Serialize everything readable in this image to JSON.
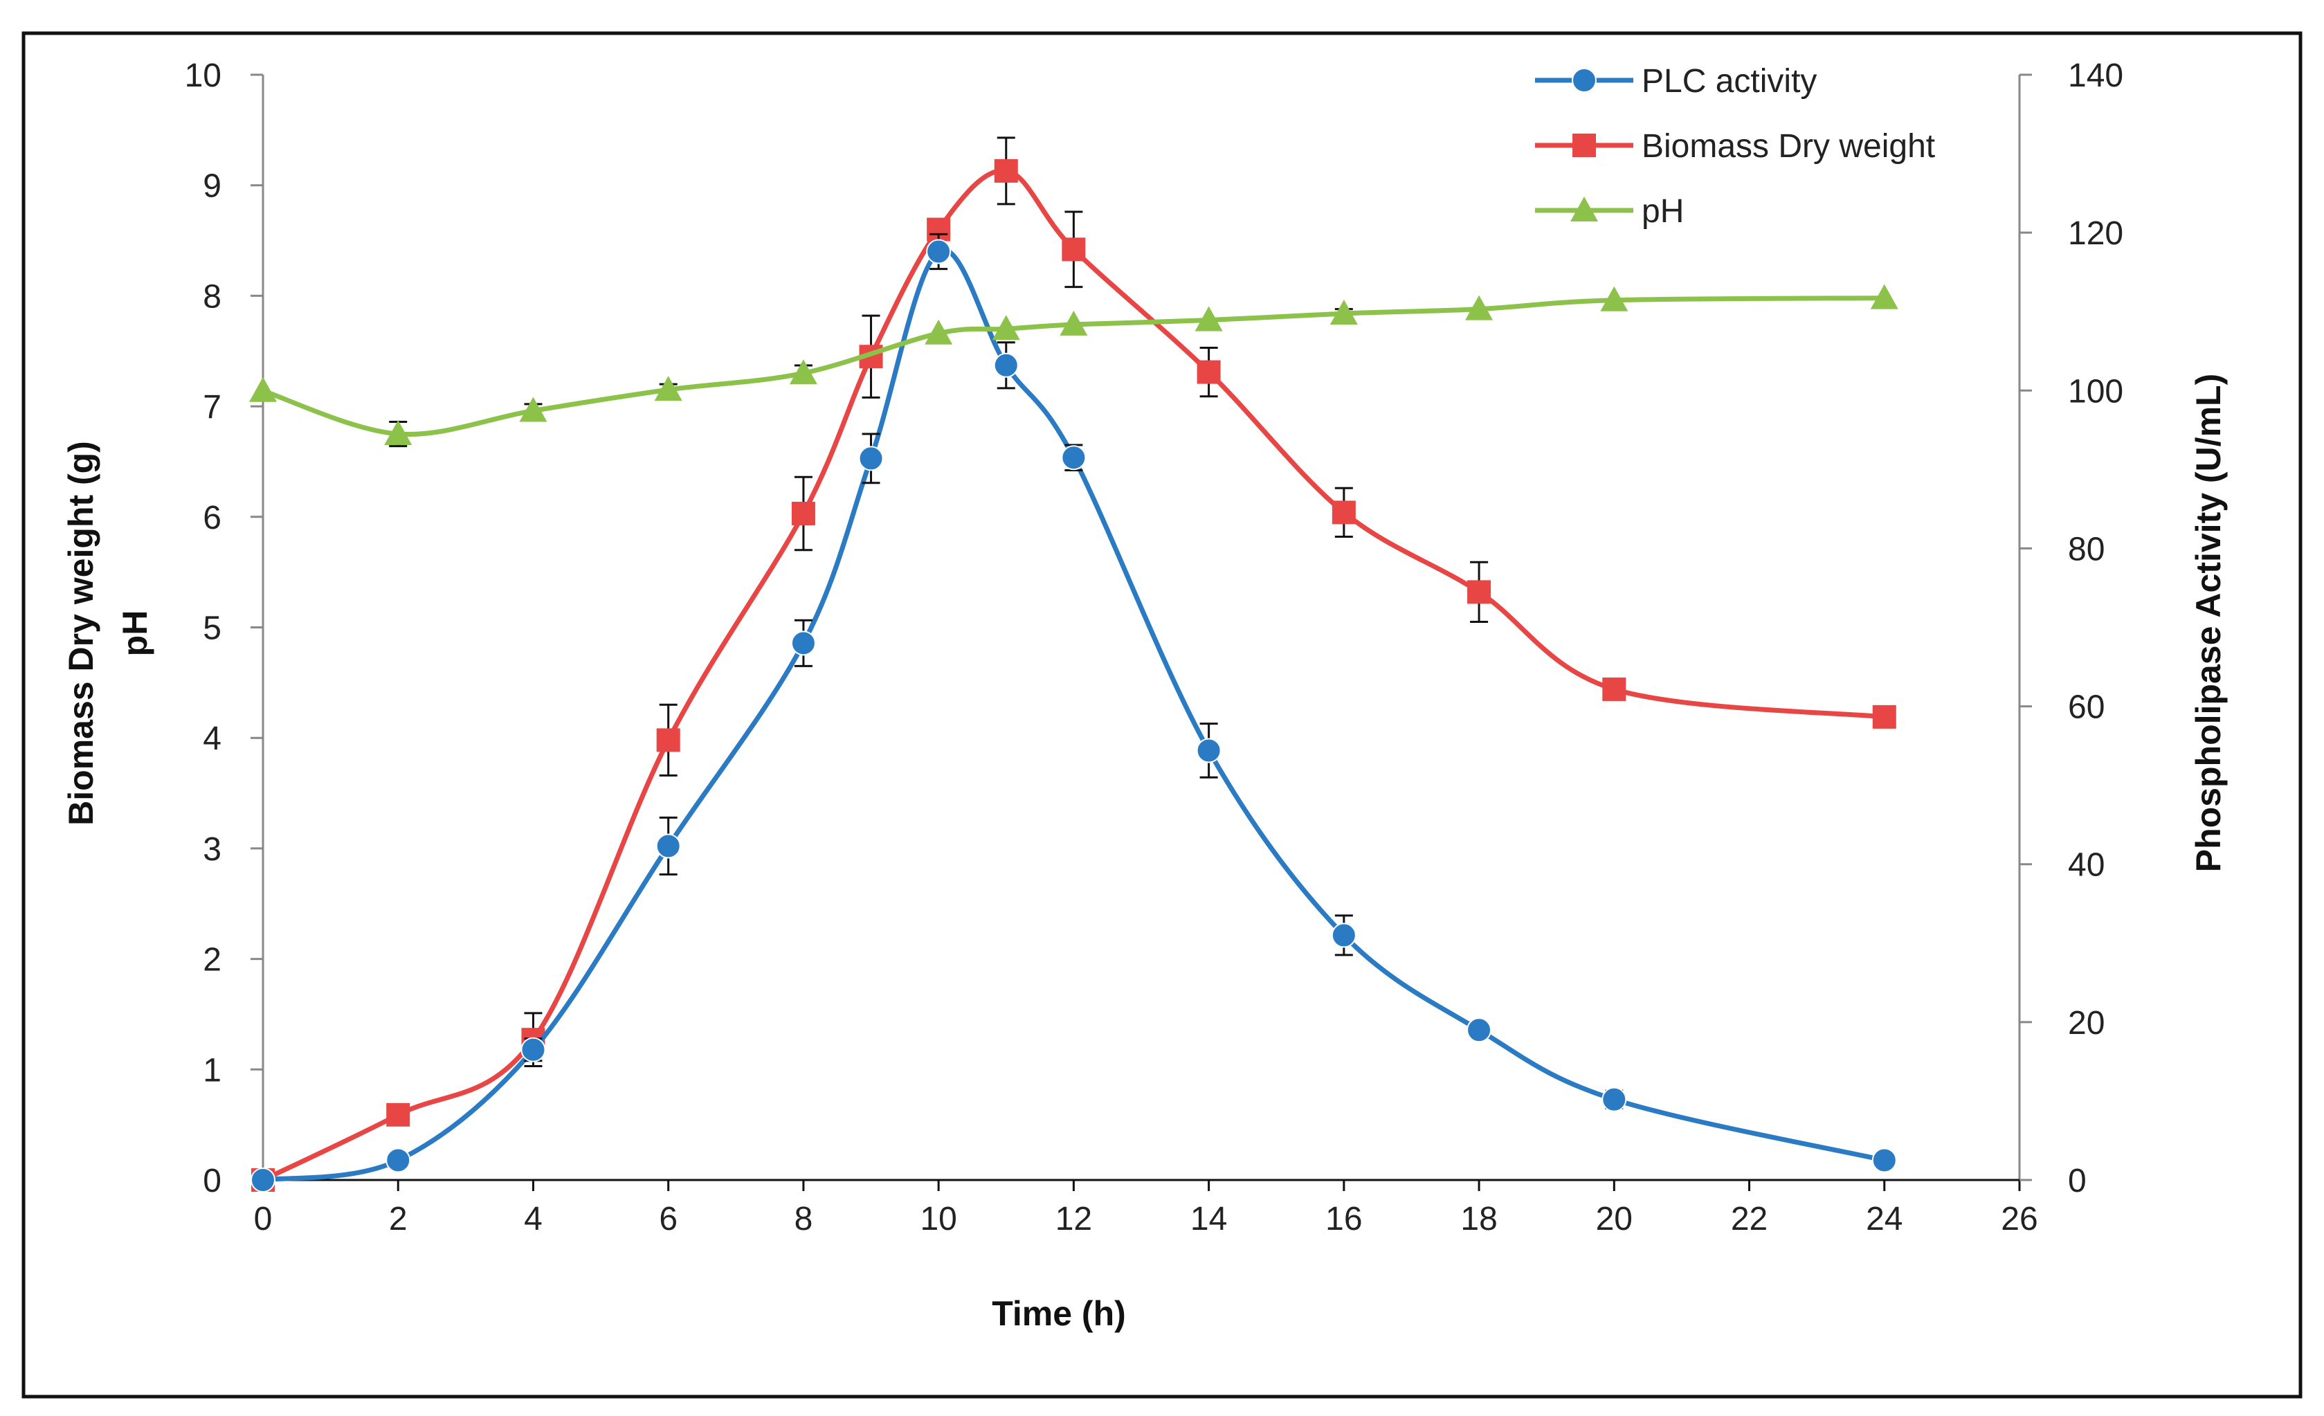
{
  "chart_data": {
    "type": "line",
    "x": [
      0,
      2,
      4,
      6,
      8,
      9,
      10,
      11,
      12,
      14,
      16,
      18,
      20,
      24
    ],
    "xlabel": "Time (h)",
    "ylabel": "Biomass Dry weight (g)",
    "ylabel2": "pH",
    "y2label": "Phospholipase Activity (U/mL)",
    "xlim": [
      0,
      26
    ],
    "xticks": [
      "0",
      "2",
      "4",
      "6",
      "8",
      "10",
      "12",
      "14",
      "16",
      "18",
      "20",
      "22",
      "24",
      "26"
    ],
    "ylim": [
      0,
      10
    ],
    "yticks": [
      "0",
      "1",
      "2",
      "3",
      "4",
      "5",
      "6",
      "7",
      "8",
      "9",
      "10"
    ],
    "y2lim": [
      0,
      140
    ],
    "y2ticks": [
      "0",
      "20",
      "40",
      "60",
      "80",
      "100",
      "120",
      "140"
    ],
    "grid": false,
    "legend_position": "top-right",
    "series": [
      {
        "name": "PLC activity",
        "axis": "right",
        "color": "#2a7bc4",
        "marker": "circle",
        "x": [
          0,
          2,
          4,
          6,
          8,
          9,
          10,
          11,
          12,
          14,
          16,
          18,
          20,
          24
        ],
        "values": [
          0,
          2.5,
          16.5,
          42.3,
          68,
          91.4,
          117.6,
          103.2,
          91.5,
          54.4,
          31,
          19,
          10.2,
          2.5
        ],
        "errors": [
          0,
          0,
          1.4,
          3.6,
          2.9,
          3.1,
          2.2,
          2.9,
          1.6,
          3.4,
          2.5,
          1,
          1.1,
          0
        ]
      },
      {
        "name": "Biomass Dry weight",
        "axis": "left",
        "color": "#e84545",
        "marker": "square",
        "x": [
          0,
          2,
          4,
          6,
          8,
          9,
          10,
          11,
          12,
          14,
          16,
          18,
          20,
          24
        ],
        "values": [
          0,
          0.59,
          1.27,
          3.98,
          6.03,
          7.45,
          8.6,
          9.13,
          8.42,
          7.31,
          6.04,
          5.32,
          4.44,
          4.19
        ],
        "errors": [
          0,
          0,
          0.24,
          0.32,
          0.33,
          0.37,
          0,
          0.3,
          0.34,
          0.22,
          0.22,
          0.27,
          0,
          0
        ]
      },
      {
        "name": "pH",
        "axis": "left",
        "color": "#8cc14a",
        "marker": "triangle",
        "x": [
          0,
          2,
          4,
          6,
          8,
          10,
          11,
          12,
          14,
          16,
          18,
          20,
          24
        ],
        "values": [
          7.14,
          6.75,
          6.96,
          7.15,
          7.3,
          7.66,
          7.7,
          7.74,
          7.78,
          7.84,
          7.88,
          7.96,
          7.98
        ],
        "errors": [
          0,
          0.11,
          0.06,
          0.05,
          0.07,
          0,
          0,
          0,
          0,
          0.04,
          0,
          0,
          0
        ]
      }
    ]
  }
}
